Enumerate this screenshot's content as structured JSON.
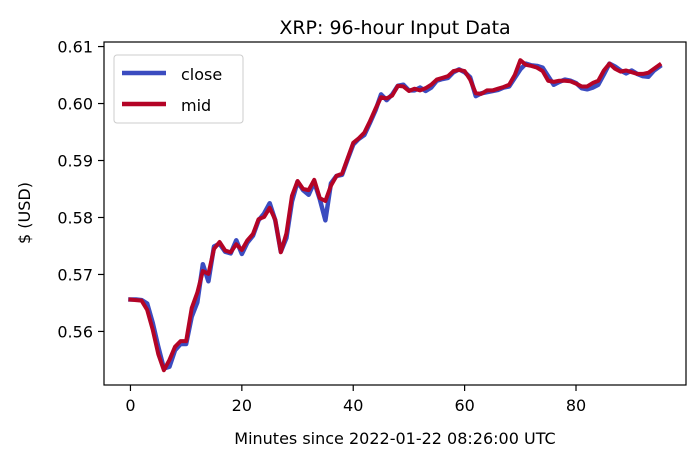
{
  "chart_data": {
    "type": "line",
    "title": "XRP: 96-hour Input Data",
    "xlabel": "Minutes since 2022-01-22 08:26:00 UTC",
    "ylabel": "$ (USD)",
    "xlim": [
      -4.75,
      99.75
    ],
    "ylim": [
      0.5506,
      0.6108
    ],
    "xticks": [
      0,
      20,
      40,
      60,
      80
    ],
    "yticks": [
      0.56,
      0.57,
      0.58,
      0.59,
      0.6,
      0.61
    ],
    "ytick_labels": [
      "0.56",
      "0.57",
      "0.58",
      "0.59",
      "0.60",
      "0.61"
    ],
    "grid": false,
    "legend_position": "top-left",
    "x": [
      0,
      1,
      2,
      3,
      4,
      5,
      6,
      7,
      8,
      9,
      10,
      11,
      12,
      13,
      14,
      15,
      16,
      17,
      18,
      19,
      20,
      21,
      22,
      23,
      24,
      25,
      26,
      27,
      28,
      29,
      30,
      31,
      32,
      33,
      34,
      35,
      36,
      37,
      38,
      39,
      40,
      41,
      42,
      43,
      44,
      45,
      46,
      47,
      48,
      49,
      50,
      51,
      52,
      53,
      54,
      55,
      56,
      57,
      58,
      59,
      60,
      61,
      62,
      63,
      64,
      65,
      66,
      67,
      68,
      69,
      70,
      71,
      72,
      73,
      74,
      75,
      76,
      77,
      78,
      79,
      80,
      81,
      82,
      83,
      84,
      85,
      86,
      87,
      88,
      89,
      90,
      91,
      92,
      93,
      94,
      95
    ],
    "series": [
      {
        "name": "close",
        "color": "#3b4cc0",
        "values": [
          0.5656,
          0.5656,
          0.5655,
          0.5649,
          0.5615,
          0.5573,
          0.5535,
          0.5538,
          0.5567,
          0.5578,
          0.5578,
          0.5626,
          0.5651,
          0.5718,
          0.5688,
          0.5749,
          0.5754,
          0.574,
          0.5737,
          0.576,
          0.5736,
          0.5756,
          0.5768,
          0.5795,
          0.5807,
          0.5825,
          0.5795,
          0.574,
          0.5764,
          0.5828,
          0.5863,
          0.5848,
          0.584,
          0.5862,
          0.5832,
          0.5795,
          0.586,
          0.5873,
          0.5875,
          0.5902,
          0.5928,
          0.5938,
          0.5945,
          0.5966,
          0.5988,
          0.6016,
          0.6006,
          0.6016,
          0.6031,
          0.6033,
          0.6023,
          0.6023,
          0.6028,
          0.6022,
          0.6028,
          0.604,
          0.6043,
          0.6045,
          0.6055,
          0.606,
          0.6055,
          0.6046,
          0.6013,
          0.6018,
          0.602,
          0.6022,
          0.6024,
          0.6028,
          0.603,
          0.6045,
          0.606,
          0.607,
          0.6067,
          0.6066,
          0.6063,
          0.6048,
          0.6033,
          0.6038,
          0.6042,
          0.604,
          0.6036,
          0.6027,
          0.6025,
          0.6028,
          0.6033,
          0.6051,
          0.607,
          0.6065,
          0.6058,
          0.6053,
          0.6058,
          0.6052,
          0.6048,
          0.6047,
          0.6058,
          0.6065
        ]
      },
      {
        "name": "mid",
        "color": "#b40426",
        "values": [
          0.5656,
          0.5655,
          0.5654,
          0.5638,
          0.5603,
          0.556,
          0.5532,
          0.555,
          0.5573,
          0.5583,
          0.5583,
          0.5641,
          0.5668,
          0.5706,
          0.5701,
          0.5745,
          0.5757,
          0.5742,
          0.5739,
          0.5753,
          0.5743,
          0.576,
          0.5771,
          0.5797,
          0.5801,
          0.5817,
          0.5796,
          0.5739,
          0.5772,
          0.5838,
          0.5864,
          0.585,
          0.5848,
          0.5866,
          0.5834,
          0.5829,
          0.5856,
          0.5873,
          0.5877,
          0.5904,
          0.5931,
          0.5939,
          0.5949,
          0.5969,
          0.5991,
          0.6011,
          0.6009,
          0.6014,
          0.6031,
          0.603,
          0.6022,
          0.6026,
          0.6023,
          0.6027,
          0.6033,
          0.6042,
          0.6045,
          0.6048,
          0.6057,
          0.6059,
          0.6057,
          0.6042,
          0.6018,
          0.6017,
          0.6023,
          0.6023,
          0.6026,
          0.6029,
          0.6033,
          0.605,
          0.6076,
          0.6068,
          0.6066,
          0.6063,
          0.6057,
          0.604,
          0.6038,
          0.604,
          0.604,
          0.6039,
          0.6035,
          0.603,
          0.603,
          0.6036,
          0.604,
          0.6058,
          0.607,
          0.6061,
          0.6056,
          0.6058,
          0.6055,
          0.6052,
          0.6052,
          0.6054,
          0.6061,
          0.6068
        ]
      }
    ]
  }
}
